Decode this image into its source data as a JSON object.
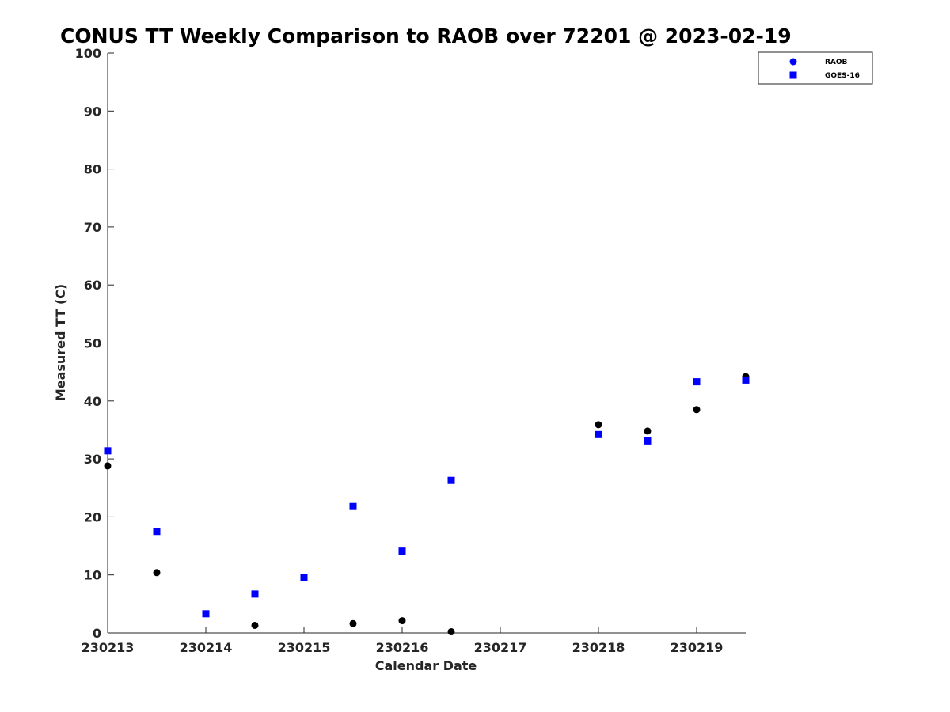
{
  "chart_data": {
    "type": "scatter",
    "title": "CONUS TT Weekly Comparison to RAOB over 72201 @ 2023-02-19",
    "xlabel": "Calendar Date",
    "ylabel": "Measured TT (C)",
    "xlim": [
      230213,
      230219.5
    ],
    "ylim": [
      0,
      100
    ],
    "x_ticks": [
      230213,
      230214,
      230215,
      230216,
      230217,
      230218,
      230219
    ],
    "x_tick_labels": [
      "230213",
      "230214",
      "230215",
      "230216",
      "230217",
      "230218",
      "230219"
    ],
    "y_ticks": [
      0,
      10,
      20,
      30,
      40,
      50,
      60,
      70,
      80,
      90,
      100
    ],
    "y_tick_labels": [
      "0",
      "10",
      "20",
      "30",
      "40",
      "50",
      "60",
      "70",
      "80",
      "90",
      "100"
    ],
    "grid": false,
    "legend_position": "top-right",
    "series": [
      {
        "name": "RAOB",
        "marker": "circle",
        "color": "#000000",
        "legend_color": "#0000ff",
        "points": [
          {
            "x": 230213.0,
            "y": 28.8
          },
          {
            "x": 230213.5,
            "y": 10.4
          },
          {
            "x": 230214.5,
            "y": 1.3
          },
          {
            "x": 230215.5,
            "y": 1.6
          },
          {
            "x": 230216.0,
            "y": 2.1
          },
          {
            "x": 230216.5,
            "y": 0.2
          },
          {
            "x": 230218.0,
            "y": 35.9
          },
          {
            "x": 230218.5,
            "y": 34.8
          },
          {
            "x": 230219.0,
            "y": 38.5
          },
          {
            "x": 230219.5,
            "y": 44.2
          }
        ]
      },
      {
        "name": "GOES-16",
        "marker": "square",
        "color": "#0000ff",
        "legend_color": "#0000ff",
        "points": [
          {
            "x": 230213.0,
            "y": 31.4
          },
          {
            "x": 230213.5,
            "y": 17.5
          },
          {
            "x": 230214.0,
            "y": 3.3
          },
          {
            "x": 230214.5,
            "y": 6.7
          },
          {
            "x": 230215.0,
            "y": 9.5
          },
          {
            "x": 230215.5,
            "y": 21.8
          },
          {
            "x": 230216.0,
            "y": 14.1
          },
          {
            "x": 230216.5,
            "y": 26.3
          },
          {
            "x": 230218.0,
            "y": 34.2
          },
          {
            "x": 230218.5,
            "y": 33.1
          },
          {
            "x": 230219.0,
            "y": 43.3
          },
          {
            "x": 230219.5,
            "y": 43.6
          }
        ]
      }
    ]
  }
}
